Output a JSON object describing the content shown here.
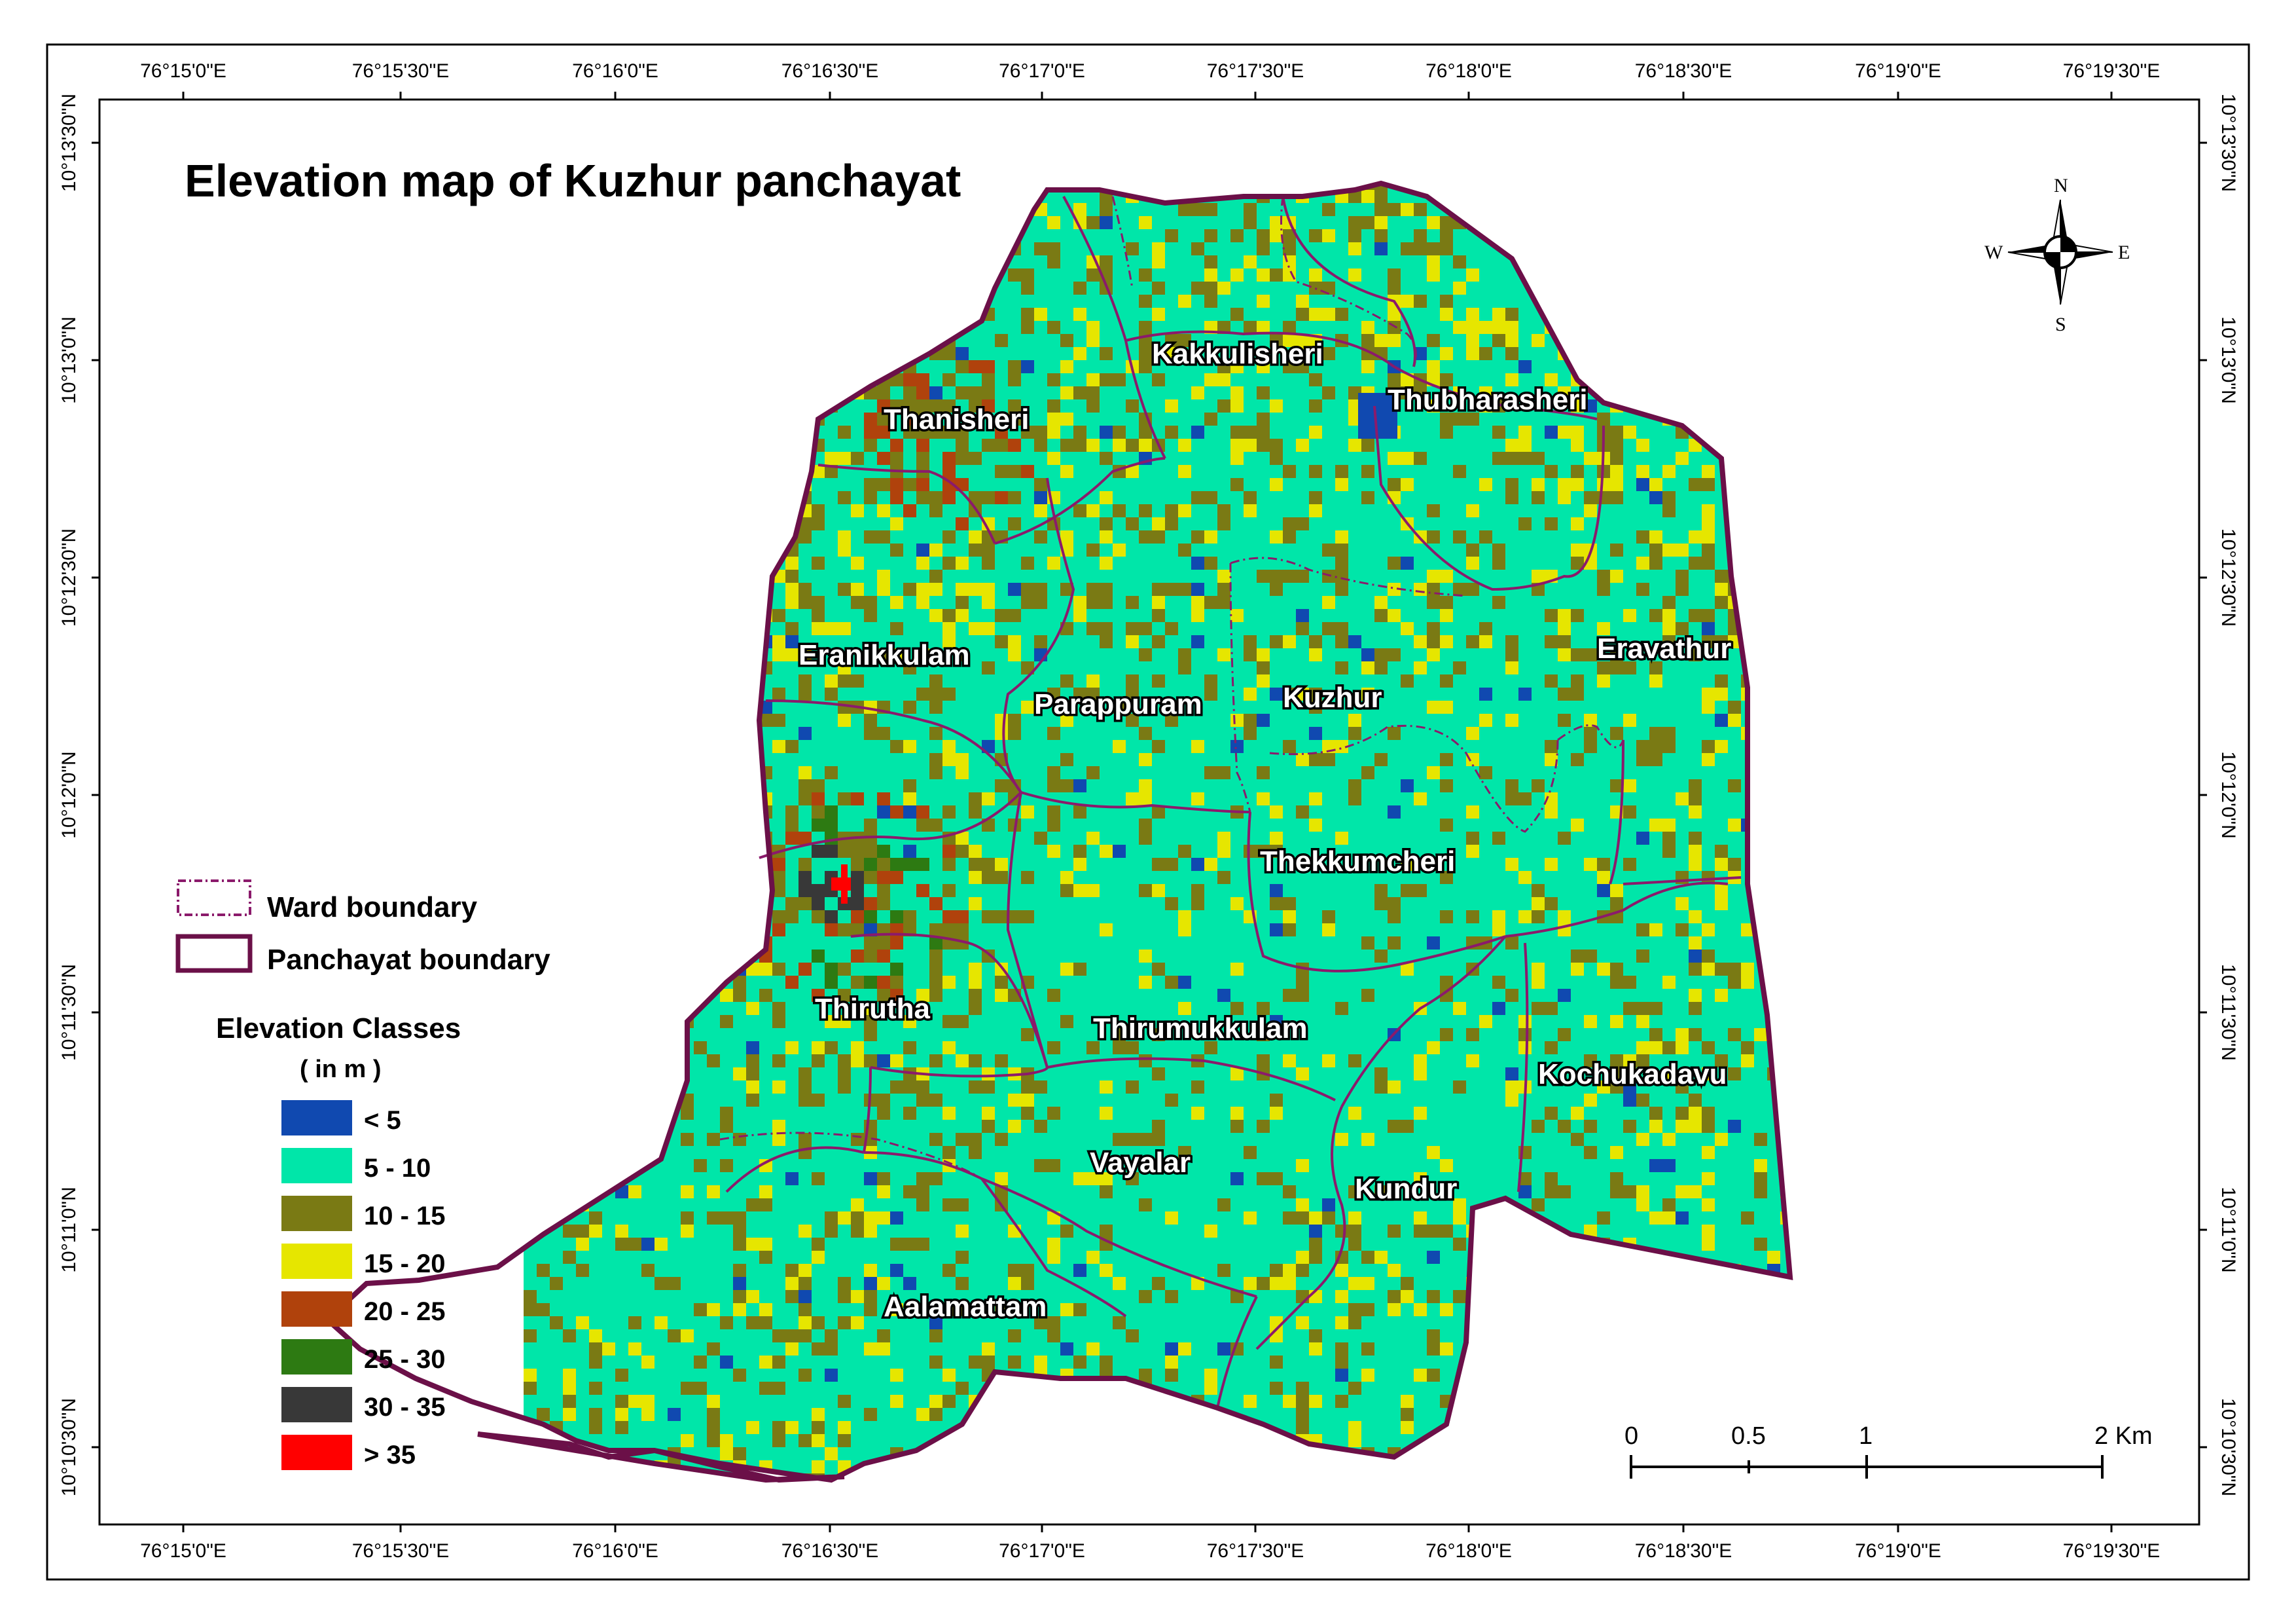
{
  "map": {
    "title": "Elevation map of Kuzhur panchayat",
    "top_ticks": [
      "76°15'0\"E",
      "76°15'30\"E",
      "76°16'0\"E",
      "76°16'30\"E",
      "76°17'0\"E",
      "76°17'30\"E",
      "76°18'0\"E",
      "76°18'30\"E",
      "76°19'0\"E",
      "76°19'30\"E"
    ],
    "bottom_ticks": [
      "76°15'0\"E",
      "76°15'30\"E",
      "76°16'0\"E",
      "76°16'30\"E",
      "76°17'0\"E",
      "76°17'30\"E",
      "76°18'0\"E",
      "76°18'30\"E",
      "76°19'0\"E",
      "76°19'30\"E"
    ],
    "left_ticks": [
      "10°13'30\"N",
      "10°13'0\"N",
      "10°12'30\"N",
      "10°12'0\"N",
      "10°11'30\"N",
      "10°11'0\"N",
      "10°10'30\"N"
    ],
    "right_ticks": [
      "10°13'30\"N",
      "10°13'0\"N",
      "10°12'30\"N",
      "10°12'0\"N",
      "10°11'30\"N",
      "10°11'0\"N",
      "10°10'30\"N"
    ],
    "wards": [
      "Kakkulisheri",
      "Thubharasheri",
      "Thanisheri",
      "Eranikkulam",
      "Parappuram",
      "Kuzhur",
      "Eravathur",
      "Thekkumcheri",
      "Thirutha",
      "Thirumukkulam",
      "Kochukadavu",
      "Vayalar",
      "Kundur",
      "Aalamattam"
    ],
    "compass": {
      "n": "N",
      "s": "S",
      "e": "E",
      "w": "W"
    },
    "scale": {
      "labels": [
        "0",
        "0.5",
        "1",
        "2 Km"
      ]
    },
    "colors": {
      "ward_boundary": "#8b1a6b",
      "panchayat_boundary": "#6b1048"
    }
  },
  "legend": {
    "ward_boundary": "Ward boundary",
    "panchayat_boundary": "Panchayat boundary",
    "classes_title": "Elevation Classes",
    "classes_unit": "( in m )",
    "classes": [
      {
        "label": "< 5",
        "color": "#1049b0"
      },
      {
        "label": "5 - 10",
        "color": "#00e6a9"
      },
      {
        "label": "10 - 15",
        "color": "#7a7a14"
      },
      {
        "label": "15 - 20",
        "color": "#e6e600"
      },
      {
        "label": "20 - 25",
        "color": "#b0420c"
      },
      {
        "label": "25 - 30",
        "color": "#2d7a12"
      },
      {
        "label": "30 - 35",
        "color": "#383838"
      },
      {
        "label": "> 35",
        "color": "#ff0000"
      }
    ]
  }
}
